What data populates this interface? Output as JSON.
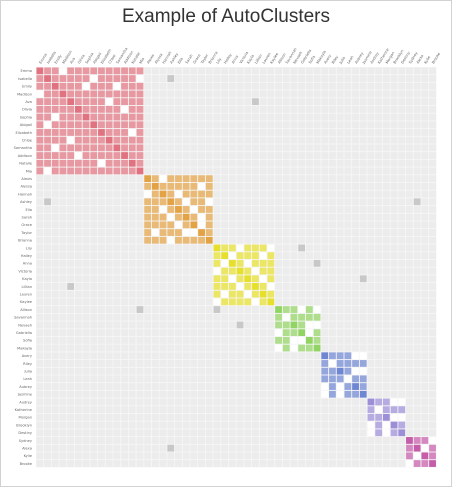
{
  "chart_data": {
    "type": "heatmap",
    "title": "Example of AutoClusters",
    "names": [
      "Emma",
      "Isabella",
      "Emily",
      "Madison",
      "Ava",
      "Olivia",
      "Sophia",
      "Abigail",
      "Elizabeth",
      "Chloe",
      "Samantha",
      "Addison",
      "Natalie",
      "Mia",
      "Alexis",
      "Alyssa",
      "Hannah",
      "Ashley",
      "Ella",
      "Sarah",
      "Grace",
      "Taylor",
      "Brianna",
      "Lily",
      "Hailey",
      "Anna",
      "Victoria",
      "Kayla",
      "Lillian",
      "Lauren",
      "Kaylee",
      "Allison",
      "Savannah",
      "Nevaeh",
      "Gabriella",
      "Sofia",
      "Makayla",
      "Avery",
      "Riley",
      "Julia",
      "Leah",
      "Aubrey",
      "Jasmine",
      "Audrey",
      "Katherine",
      "Morgan",
      "Brooklyn",
      "Destiny",
      "Sydney",
      "Alexa",
      "Kylie",
      "Brooke"
    ],
    "groups": [
      {
        "start": 0,
        "size": 14,
        "color": "#e0737f"
      },
      {
        "start": 14,
        "size": 9,
        "color": "#e3a244"
      },
      {
        "start": 23,
        "size": 8,
        "color": "#e6df2b"
      },
      {
        "start": 31,
        "size": 6,
        "color": "#92d463"
      },
      {
        "start": 37,
        "size": 6,
        "color": "#6f86d2"
      },
      {
        "start": 43,
        "size": 5,
        "color": "#9c8fd8"
      },
      {
        "start": 48,
        "size": 4,
        "color": "#c65da9"
      }
    ],
    "cluster_holes": [
      [
        0,
        3
      ],
      [
        1,
        7
      ],
      [
        1,
        13
      ],
      [
        2,
        10
      ],
      [
        3,
        0
      ],
      [
        4,
        9
      ],
      [
        5,
        11
      ],
      [
        6,
        2
      ],
      [
        7,
        1
      ],
      [
        8,
        12
      ],
      [
        9,
        4
      ],
      [
        10,
        2
      ],
      [
        11,
        5
      ],
      [
        12,
        8
      ],
      [
        13,
        1
      ],
      [
        14,
        2
      ],
      [
        15,
        7
      ],
      [
        16,
        0
      ],
      [
        17,
        5
      ],
      [
        18,
        2
      ],
      [
        19,
        7
      ],
      [
        20,
        4
      ],
      [
        21,
        6
      ],
      [
        22,
        3
      ],
      [
        23,
        3
      ],
      [
        24,
        6
      ],
      [
        25,
        1
      ],
      [
        26,
        5
      ],
      [
        27,
        2
      ],
      [
        28,
        7
      ],
      [
        29,
        4
      ],
      [
        30,
        0
      ],
      [
        31,
        3
      ],
      [
        32,
        1
      ],
      [
        33,
        5
      ],
      [
        34,
        4
      ],
      [
        35,
        2
      ],
      [
        36,
        0
      ],
      [
        37,
        4
      ],
      [
        38,
        1
      ],
      [
        39,
        5
      ],
      [
        40,
        3
      ],
      [
        41,
        2
      ],
      [
        42,
        0
      ],
      [
        43,
        3
      ],
      [
        44,
        1
      ],
      [
        45,
        4
      ],
      [
        46,
        2
      ],
      [
        47,
        0
      ],
      [
        48,
        3
      ],
      [
        49,
        2
      ],
      [
        50,
        1
      ],
      [
        51,
        0
      ]
    ],
    "outliers": [
      [
        1,
        17
      ],
      [
        4,
        28
      ],
      [
        17,
        1
      ],
      [
        17,
        49
      ],
      [
        23,
        34
      ],
      [
        25,
        36
      ],
      [
        27,
        42
      ],
      [
        28,
        4
      ],
      [
        31,
        13
      ],
      [
        31,
        23
      ],
      [
        33,
        26
      ],
      [
        49,
        17
      ]
    ],
    "background_color": "#ececec",
    "outlier_color": "#c8c8c8",
    "grid": true
  }
}
